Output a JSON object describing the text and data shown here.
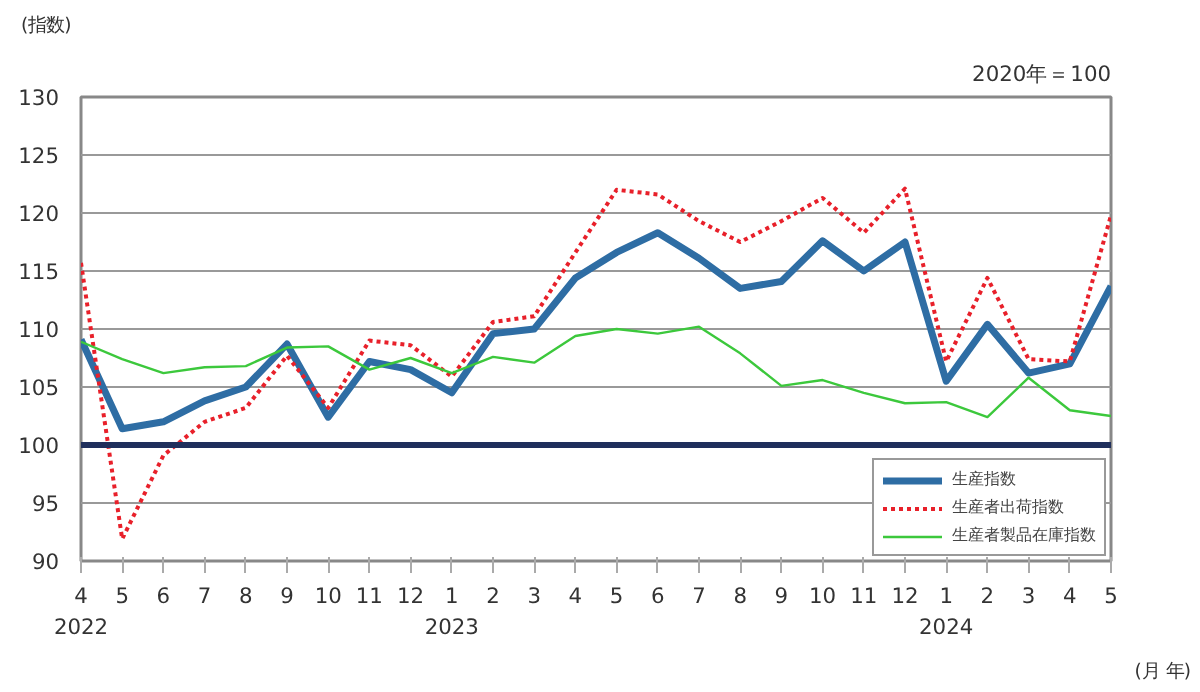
{
  "chart_data": {
    "type": "line",
    "ylabel": "(指数)",
    "xlabel": "(月\n年)",
    "annotations": [
      "2020年＝100"
    ],
    "categories": [
      "4\n2022",
      "5",
      "6",
      "7",
      "8",
      "9",
      "10",
      "11",
      "12",
      "1\n2023",
      "2",
      "3",
      "4",
      "5",
      "6",
      "7",
      "8",
      "9",
      "10",
      "11",
      "12",
      "1\n2024",
      "2",
      "3",
      "4",
      "5"
    ],
    "series": [
      {
        "name": "生産指数",
        "color": "#2e6da4",
        "line_style": "solid",
        "values": [
          109.1,
          101.4,
          102.0,
          103.8,
          105.0,
          108.7,
          102.4,
          107.2,
          106.5,
          104.5,
          109.6,
          110.0,
          114.4,
          116.6,
          118.3,
          116.1,
          113.5,
          114.1,
          117.6,
          115.0,
          117.5,
          105.5,
          110.4,
          106.2,
          107.0,
          113.7
        ]
      },
      {
        "name": "生産者出荷指数",
        "color": "#e8202a",
        "line_style": "dotted",
        "values": [
          115.7,
          91.9,
          99.1,
          102.0,
          103.2,
          107.7,
          103.2,
          109.0,
          108.6,
          105.9,
          110.6,
          111.1,
          116.6,
          122.0,
          121.6,
          119.3,
          117.5,
          119.3,
          121.3,
          118.3,
          122.1,
          107.2,
          114.4,
          107.4,
          107.2,
          119.8
        ]
      },
      {
        "name": "生産者製品在庫指数",
        "color": "#3cc83c",
        "line_style": "solid",
        "values": [
          108.9,
          107.4,
          106.2,
          106.7,
          106.8,
          108.4,
          108.5,
          106.5,
          107.5,
          106.2,
          107.6,
          107.1,
          109.4,
          110.0,
          109.6,
          110.2,
          107.9,
          105.1,
          105.6,
          104.5,
          103.6,
          103.7,
          102.4,
          105.8,
          103.0,
          102.5
        ]
      }
    ],
    "ylim": [
      90,
      130
    ],
    "yticks": [
      90,
      95,
      100,
      105,
      110,
      115,
      120,
      125,
      130
    ],
    "ref_lines": [
      {
        "axis": "y",
        "value": 100,
        "color": "#1f2f5c",
        "line_style": "solid"
      }
    ],
    "grid": "y",
    "legend": "bottom right",
    "marker": "none"
  }
}
